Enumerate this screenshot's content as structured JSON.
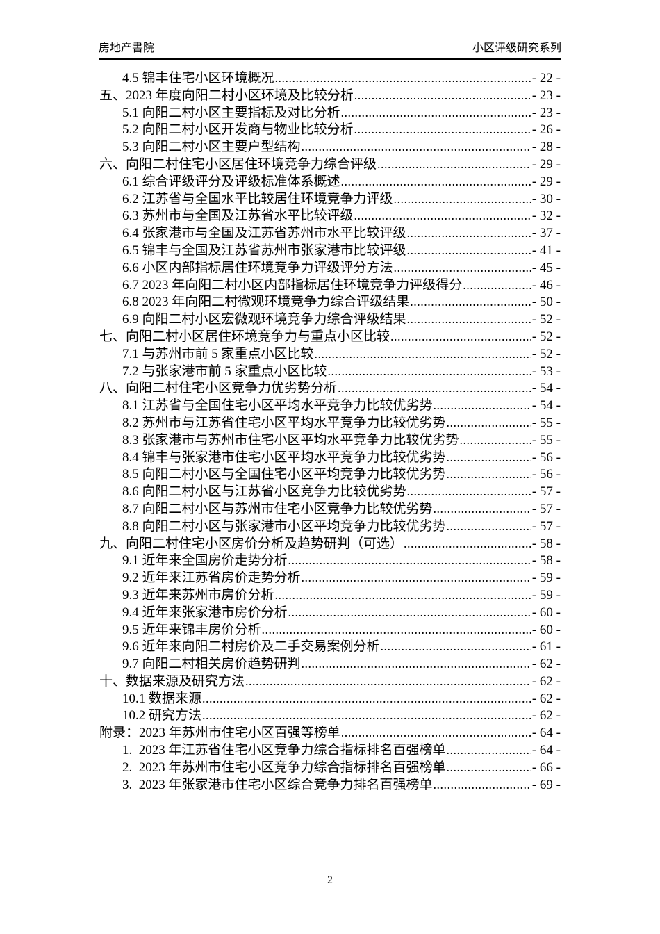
{
  "header": {
    "left": "房地产書院",
    "right": "小区评级研究系列"
  },
  "colors": {
    "text": "#000000",
    "background": "#ffffff",
    "header_rule": "#000000"
  },
  "toc": {
    "entries": [
      {
        "level": 2,
        "label": "4.5 锦丰住宅小区环境概况",
        "page_label": "- 22 -"
      },
      {
        "level": 1,
        "label": "五、2023 年度向阳二村小区环境及比较分析",
        "page_label": "- 23 -"
      },
      {
        "level": 2,
        "label": "5.1 向阳二村小区主要指标及对比分析",
        "page_label": "- 23 -"
      },
      {
        "level": 2,
        "label": "5.2 向阳二村小区开发商与物业比较分析",
        "page_label": "- 26 -"
      },
      {
        "level": 2,
        "label": "5.3 向阳二村小区主要户型结构",
        "page_label": "- 28 -"
      },
      {
        "level": 1,
        "label": "六、向阳二村住宅小区居住环境竞争力综合评级",
        "page_label": "- 29 -"
      },
      {
        "level": 2,
        "label": "6.1 综合评级评分及评级标准体系概述",
        "page_label": "- 29 -"
      },
      {
        "level": 2,
        "label": "6.2 江苏省与全国水平比较居住环境竞争力评级",
        "page_label": "- 30 -"
      },
      {
        "level": 2,
        "label": "6.3 苏州市与全国及江苏省水平比较评级",
        "page_label": "- 32 -"
      },
      {
        "level": 2,
        "label": "6.4 张家港市与全国及江苏省苏州市水平比较评级",
        "page_label": "- 37 -"
      },
      {
        "level": 2,
        "label": "6.5 锦丰与全国及江苏省苏州市张家港市比较评级",
        "page_label": "- 41 -"
      },
      {
        "level": 2,
        "label": "6.6 小区内部指标居住环境竞争力评级评分方法",
        "page_label": "- 45 -"
      },
      {
        "level": 2,
        "label": "6.7 2023 年向阳二村小区内部指标居住环境竞争力评级得分",
        "page_label": "- 46 -"
      },
      {
        "level": 2,
        "label": "6.8 2023 年向阳二村微观环境竞争力综合评级结果",
        "page_label": "- 50 -"
      },
      {
        "level": 2,
        "label": "6.9 向阳二村小区宏微观环境竞争力综合评级结果",
        "page_label": "- 52 -"
      },
      {
        "level": 1,
        "label": "七、向阳二村小区居住环境竞争力与重点小区比较",
        "page_label": "- 52 -"
      },
      {
        "level": 2,
        "label": "7.1 与苏州市前 5 家重点小区比较",
        "page_label": "- 52 -"
      },
      {
        "level": 2,
        "label": "7.2 与张家港市前 5 家重点小区比较",
        "page_label": "- 53 -"
      },
      {
        "level": 1,
        "label": "八、向阳二村住宅小区竞争力优劣势分析",
        "page_label": "- 54 -"
      },
      {
        "level": 2,
        "label": "8.1 江苏省与全国住宅小区平均水平竞争力比较优劣势",
        "page_label": "- 54 -"
      },
      {
        "level": 2,
        "label": "8.2 苏州市与江苏省住宅小区平均水平竞争力比较优劣势",
        "page_label": "- 55 -"
      },
      {
        "level": 2,
        "label": "8.3 张家港市与苏州市住宅小区平均水平竞争力比较优劣势",
        "page_label": "- 55 -"
      },
      {
        "level": 2,
        "label": "8.4 锦丰与张家港市住宅小区平均水平竞争力比较优劣势",
        "page_label": "- 56 -"
      },
      {
        "level": 2,
        "label": "8.5 向阳二村小区与全国住宅小区平均竞争力比较优劣势",
        "page_label": "- 56 -"
      },
      {
        "level": 2,
        "label": "8.6 向阳二村小区与江苏省小区竞争力比较优劣势",
        "page_label": "- 57 -"
      },
      {
        "level": 2,
        "label": "8.7 向阳二村小区与苏州市住宅小区竞争力比较优劣势",
        "page_label": "- 57 -"
      },
      {
        "level": 2,
        "label": "8.8 向阳二村小区与张家港市小区平均竞争力比较优劣势",
        "page_label": "- 57 -"
      },
      {
        "level": 1,
        "label": "九、向阳二村住宅小区房价分析及趋势研判（可选）",
        "page_label": "- 58 -"
      },
      {
        "level": 2,
        "label": "9.1 近年来全国房价走势分析",
        "page_label": "- 58 -"
      },
      {
        "level": 2,
        "label": "9.2 近年来江苏省房价走势分析",
        "page_label": "- 59 -"
      },
      {
        "level": 2,
        "label": "9.3 近年来苏州市房价分析",
        "page_label": "- 59 -"
      },
      {
        "level": 2,
        "label": "9.4 近年来张家港市房价分析",
        "page_label": "- 60 -"
      },
      {
        "level": 2,
        "label": "9.5 近年来锦丰房价分析",
        "page_label": "- 60 -"
      },
      {
        "level": 2,
        "label": "9.6 近年来向阳二村房价及二手交易案例分析",
        "page_label": "- 61 -"
      },
      {
        "level": 2,
        "label": "9.7 向阳二村相关房价趋势研判",
        "page_label": "- 62 -"
      },
      {
        "level": 1,
        "label": "十、数据来源及研究方法",
        "page_label": "- 62 -"
      },
      {
        "level": 2,
        "label": "10.1 数据来源",
        "page_label": "- 62 -"
      },
      {
        "level": 2,
        "label": "10.2 研究方法",
        "page_label": "- 62 -"
      },
      {
        "level": 1,
        "label": "附录：2023 年苏州市住宅小区百强等榜单",
        "page_label": "- 64 -"
      },
      {
        "level": 2,
        "label": "1.  2023 年江苏省住宅小区竞争力综合指标排名百强榜单",
        "page_label": "- 64 -"
      },
      {
        "level": 2,
        "label": "2.  2023 年苏州市住宅小区竞争力综合指标排名百强榜单",
        "page_label": "- 66 -"
      },
      {
        "level": 2,
        "label": "3.  2023 年张家港市住宅小区综合竞争力排名百强榜单",
        "page_label": "- 69 -"
      }
    ]
  },
  "footer": {
    "page_number": "2"
  }
}
